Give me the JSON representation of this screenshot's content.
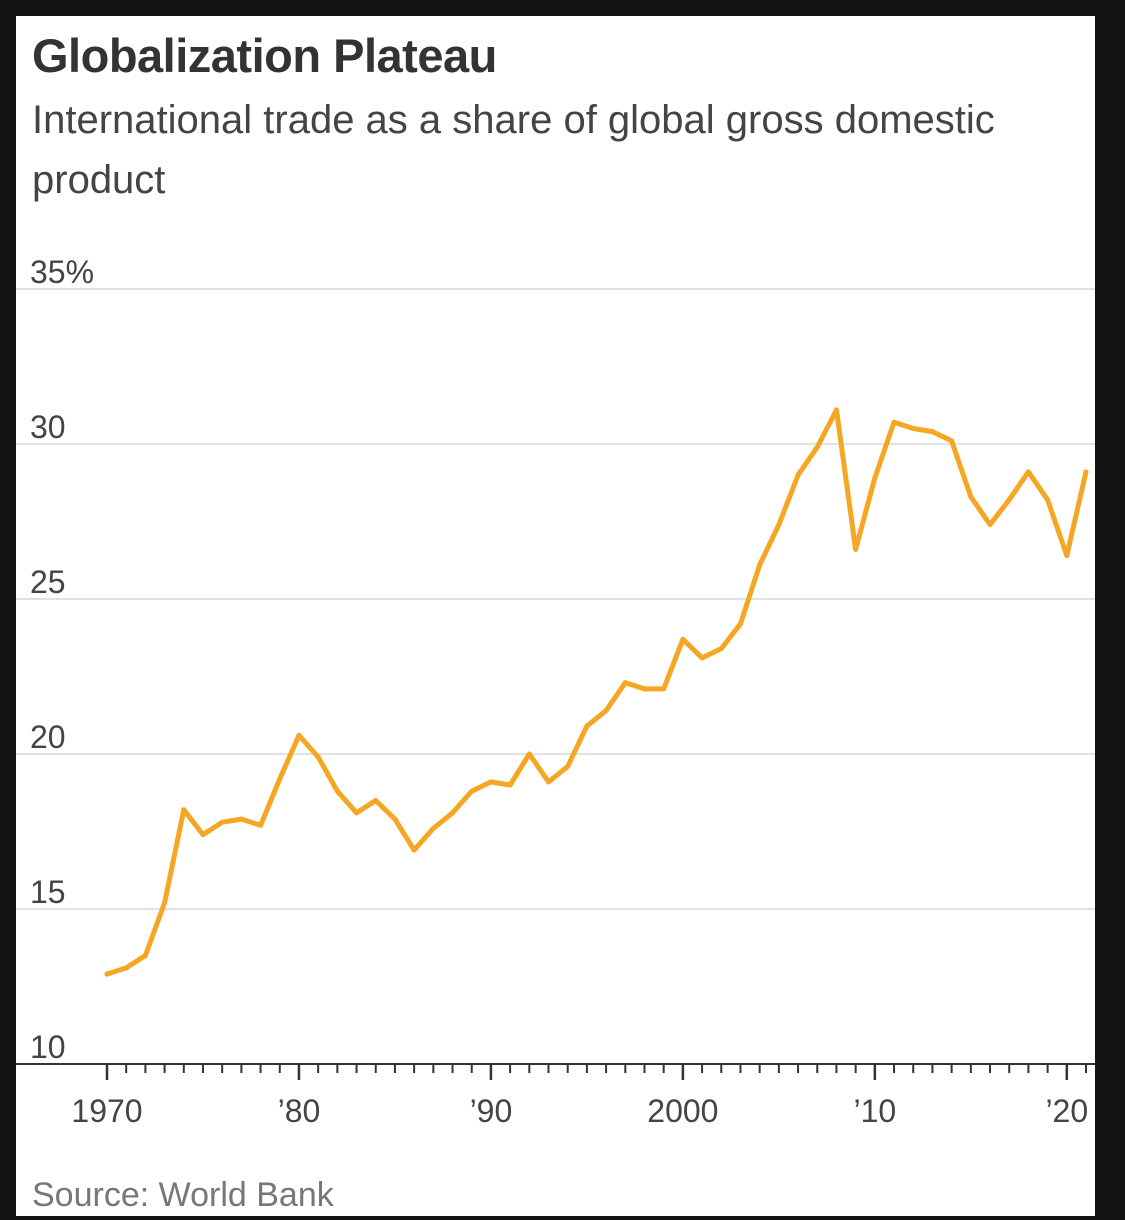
{
  "title": "Globalization Plateau",
  "subtitle": "International trade as a share of global gross domestic product",
  "source": "Source: World Bank",
  "colors": {
    "line": "#f5a623",
    "grid": "#e2e2e2",
    "axis": "#333333"
  },
  "chart_data": {
    "type": "line",
    "title": "Globalization Plateau",
    "subtitle": "International trade as a share of global gross domestic product",
    "xlabel": "",
    "ylabel": "",
    "xlim": [
      1970,
      2021
    ],
    "ylim": [
      10,
      35
    ],
    "grid": true,
    "legend": "none",
    "y_ticks": [
      {
        "value": 35,
        "label": "35%"
      },
      {
        "value": 30,
        "label": "30"
      },
      {
        "value": 25,
        "label": "25"
      },
      {
        "value": 20,
        "label": "20"
      },
      {
        "value": 15,
        "label": "15"
      },
      {
        "value": 10,
        "label": "10"
      }
    ],
    "x_ticks": [
      {
        "value": 1970,
        "label": "1970"
      },
      {
        "value": 1980,
        "label": "’80"
      },
      {
        "value": 1990,
        "label": "’90"
      },
      {
        "value": 2000,
        "label": "2000"
      },
      {
        "value": 2010,
        "label": "’10"
      },
      {
        "value": 2020,
        "label": "’20"
      }
    ],
    "series": [
      {
        "x": [
          1970,
          1971,
          1972,
          1973,
          1974,
          1975,
          1976,
          1977,
          1978,
          1979,
          1980,
          1981,
          1982,
          1983,
          1984,
          1985,
          1986,
          1987,
          1988,
          1989,
          1990,
          1991,
          1992,
          1993,
          1994,
          1995,
          1996,
          1997,
          1998,
          1999,
          2000,
          2001,
          2002,
          2003,
          2004,
          2005,
          2006,
          2007,
          2008,
          2009,
          2010,
          2011,
          2012,
          2013,
          2014,
          2015,
          2016,
          2017,
          2018,
          2019,
          2020,
          2021
        ],
        "values": [
          12.9,
          13.1,
          13.5,
          15.2,
          18.2,
          17.4,
          17.8,
          17.9,
          17.7,
          19.2,
          20.6,
          19.9,
          18.8,
          18.1,
          18.5,
          17.9,
          16.9,
          17.6,
          18.1,
          18.8,
          19.1,
          19.0,
          20.0,
          19.1,
          19.6,
          20.9,
          21.4,
          22.3,
          22.1,
          22.1,
          23.7,
          23.1,
          23.4,
          24.2,
          26.1,
          27.4,
          29.0,
          29.9,
          31.1,
          26.6,
          28.9,
          30.7,
          30.5,
          30.4,
          30.1,
          28.3,
          27.4,
          28.2,
          29.1,
          28.2,
          26.4,
          29.1
        ]
      }
    ]
  }
}
